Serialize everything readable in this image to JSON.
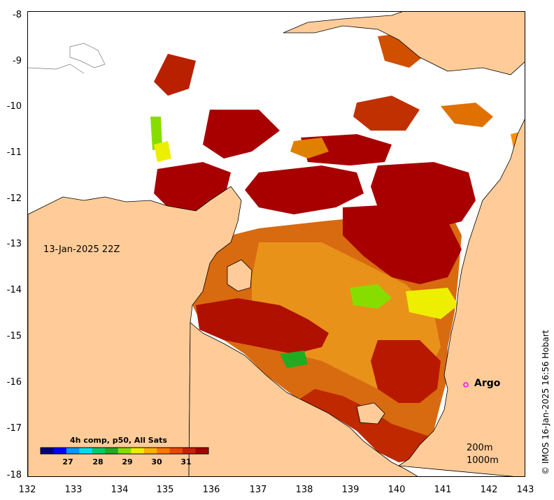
{
  "map": {
    "date_label": "13-Jan-2025 22Z",
    "argo_label": "Argo",
    "depth_200": "200m",
    "depth_1000": "1000m",
    "credit": "© IMOS 16-Jan-2025 16:56 Hobart",
    "colorbar": {
      "title": "4h comp, p50, All Sats",
      "ticks": [
        "27",
        "28",
        "29",
        "30",
        "31"
      ],
      "colors": [
        "#00007f",
        "#0000ff",
        "#0099ff",
        "#00ddee",
        "#00cc66",
        "#22aa22",
        "#88dd00",
        "#eeee00",
        "#ffb000",
        "#ff7700",
        "#e84800",
        "#c82000",
        "#a80000"
      ]
    },
    "x_ticks": [
      "132",
      "133",
      "134",
      "135",
      "136",
      "137",
      "138",
      "139",
      "140",
      "141",
      "142",
      "143"
    ],
    "y_ticks": [
      "-8",
      "-9",
      "-10",
      "-11",
      "-12",
      "-13",
      "-14",
      "-15",
      "-16",
      "-17",
      "-18"
    ],
    "colors": {
      "land": "#ffcc99",
      "no_data": "#ffffff",
      "sst_hot": "#a80000",
      "sst_warm": "#d86000",
      "sst_mid": "#f0a000",
      "argo_marker": "#ff00ff"
    }
  }
}
